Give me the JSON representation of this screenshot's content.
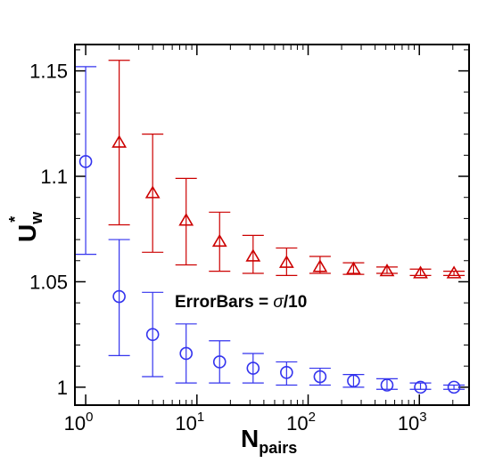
{
  "chart_data": {
    "type": "scatter",
    "xscale": "log",
    "xlim": [
      0.8,
      2800
    ],
    "ylim": [
      0.9915,
      1.1625
    ],
    "xticks": [
      {
        "value": 1,
        "base": "10",
        "exp": "0"
      },
      {
        "value": 10,
        "base": "10",
        "exp": "1"
      },
      {
        "value": 100,
        "base": "10",
        "exp": "2"
      },
      {
        "value": 1000,
        "base": "10",
        "exp": "3"
      }
    ],
    "yticks": [
      {
        "value": 1.0,
        "label": "1"
      },
      {
        "value": 1.05,
        "label": "1.05"
      },
      {
        "value": 1.1,
        "label": "1.1"
      },
      {
        "value": 1.15,
        "label": "1.15"
      }
    ],
    "xlabel": {
      "main": "N",
      "sub": "pairs"
    },
    "ylabel": {
      "main": "U",
      "sup": "*",
      "sub": "w"
    },
    "annotation": {
      "lhs": "ErrorBars = ",
      "sigma": "σ",
      "rhs": "/10"
    },
    "series": [
      {
        "marker": "triangle",
        "color": "#cc0000",
        "x": [
          2,
          4,
          8,
          16,
          32,
          64,
          128,
          256,
          512,
          1024,
          2048
        ],
        "y": [
          1.116,
          1.092,
          1.079,
          1.069,
          1.062,
          1.059,
          1.057,
          1.056,
          1.055,
          1.054,
          1.054
        ],
        "yerr_low": [
          1.077,
          1.064,
          1.058,
          1.055,
          1.054,
          1.053,
          1.054,
          1.0535,
          1.054,
          1.053,
          1.053
        ],
        "yerr_high": [
          1.155,
          1.12,
          1.099,
          1.083,
          1.072,
          1.066,
          1.062,
          1.059,
          1.057,
          1.056,
          1.055
        ]
      },
      {
        "marker": "circle",
        "color": "#3333ee",
        "x": [
          1,
          2,
          4,
          8,
          16,
          32,
          64,
          128,
          256,
          512,
          1024,
          2048
        ],
        "y": [
          1.107,
          1.043,
          1.025,
          1.016,
          1.012,
          1.009,
          1.007,
          1.005,
          1.003,
          1.001,
          1.0,
          1.0
        ],
        "yerr_low": [
          1.063,
          1.015,
          1.005,
          1.002,
          1.002,
          1.002,
          1.001,
          1.001,
          1.0,
          0.999,
          0.999,
          0.999
        ],
        "yerr_high": [
          1.152,
          1.07,
          1.045,
          1.03,
          1.022,
          1.016,
          1.012,
          1.009,
          1.006,
          1.004,
          1.002,
          1.001
        ]
      }
    ]
  }
}
